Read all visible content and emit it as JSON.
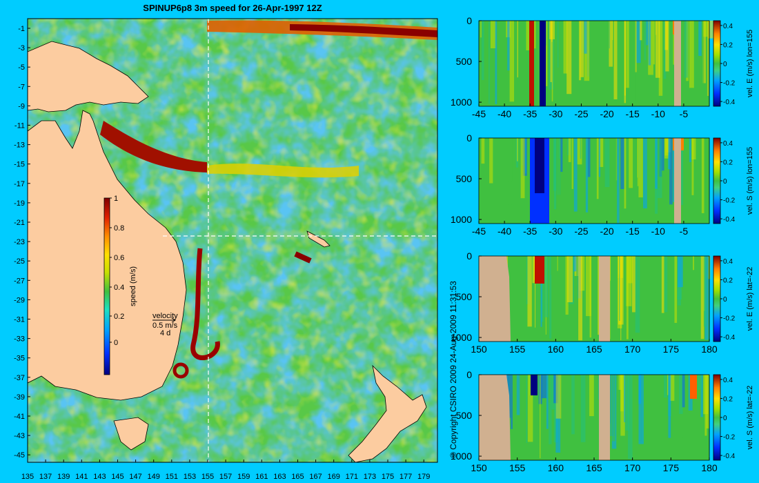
{
  "title": "SPINUP6p8 3m speed for 26-Apr-1997 12Z",
  "copyright": "© Copyright CSIRO 2009   24-Aug-2009 11:31:53",
  "map": {
    "lat_ticks": [
      "-1",
      "-3",
      "-5",
      "-7",
      "-9",
      "-11",
      "-13",
      "-15",
      "-17",
      "-19",
      "-21",
      "-23",
      "-25",
      "-27",
      "-29",
      "-31",
      "-33",
      "-35",
      "-37",
      "-39",
      "-41",
      "-43",
      "-45"
    ],
    "lon_ticks": [
      "135",
      "137",
      "139",
      "141",
      "143",
      "145",
      "147",
      "149",
      "151",
      "153",
      "155",
      "157",
      "159",
      "161",
      "163",
      "165",
      "167",
      "169",
      "171",
      "173",
      "175",
      "177",
      "179"
    ],
    "colorbar_ticks": [
      "1",
      "0.8",
      "0.6",
      "0.4",
      "0.2",
      "0"
    ],
    "colorbar_label": "speed (m/s)",
    "legend_title": "velocity",
    "legend_speed": "0.5 m/s",
    "legend_time": "4 d",
    "land_color": "#fccca0",
    "section_lon": 155,
    "section_lat": -22
  },
  "chart_data": [
    {
      "type": "heatmap",
      "name": "map",
      "title": "SPINUP6p8 3m speed for 26-Apr-1997 12Z",
      "xlim": [
        134.5,
        180
      ],
      "ylim": [
        -45,
        0
      ],
      "colorbar_label": "speed (m/s)",
      "clim": [
        0,
        1
      ],
      "lat_ticks": [
        -1,
        -3,
        -5,
        -7,
        -9,
        -11,
        -13,
        -15,
        -17,
        -19,
        -21,
        -23,
        -25,
        -27,
        -29,
        -31,
        -33,
        -35,
        -37,
        -39,
        -41,
        -43,
        -45
      ],
      "lon_ticks": [
        135,
        137,
        139,
        141,
        143,
        145,
        147,
        149,
        151,
        153,
        155,
        157,
        159,
        161,
        163,
        165,
        167,
        169,
        171,
        173,
        175,
        177,
        179
      ]
    },
    {
      "type": "heatmap",
      "name": "section-1",
      "colorbar_label": "vel. E (m/s) lon=155",
      "x_ticks": [
        "-45",
        "-40",
        "-35",
        "-30",
        "-25",
        "-20",
        "-15",
        "-10",
        "-5"
      ],
      "y_ticks": [
        "0",
        "500",
        "1000"
      ],
      "cb_ticks": [
        "0.4",
        "0.2",
        "0",
        "-0.2",
        "-0.4"
      ],
      "xlim": [
        -45,
        0
      ],
      "ylim": [
        1050,
        0
      ],
      "clim": [
        -0.4,
        0.4
      ]
    },
    {
      "type": "heatmap",
      "name": "section-2",
      "colorbar_label": "vel. S (m/s) lon=155",
      "x_ticks": [
        "-45",
        "-40",
        "-35",
        "-30",
        "-25",
        "-20",
        "-15",
        "-10",
        "-5"
      ],
      "y_ticks": [
        "0",
        "500",
        "1000"
      ],
      "cb_ticks": [
        "0.4",
        "0.2",
        "0",
        "-0.2",
        "-0.4"
      ],
      "xlim": [
        -45,
        0
      ],
      "ylim": [
        1050,
        0
      ],
      "clim": [
        -0.4,
        0.4
      ]
    },
    {
      "type": "heatmap",
      "name": "section-3",
      "colorbar_label": "vel. E (m/s) lat=-22",
      "x_ticks": [
        "150",
        "155",
        "160",
        "165",
        "170",
        "175",
        "180"
      ],
      "y_ticks": [
        "0",
        "500",
        "1000"
      ],
      "cb_ticks": [
        "0.4",
        "0.2",
        "0",
        "-0.2",
        "-0.4"
      ],
      "xlim": [
        150,
        180
      ],
      "ylim": [
        1050,
        0
      ],
      "clim": [
        -0.4,
        0.4
      ]
    },
    {
      "type": "heatmap",
      "name": "section-4",
      "colorbar_label": "vel. S (m/s) lat=-22",
      "x_ticks": [
        "150",
        "155",
        "160",
        "165",
        "170",
        "175",
        "180"
      ],
      "y_ticks": [
        "0",
        "500",
        "1000"
      ],
      "cb_ticks": [
        "0.4",
        "0.2",
        "0",
        "-0.2",
        "-0.4"
      ],
      "xlim": [
        150,
        180
      ],
      "ylim": [
        1050,
        0
      ],
      "clim": [
        -0.4,
        0.4
      ]
    }
  ]
}
